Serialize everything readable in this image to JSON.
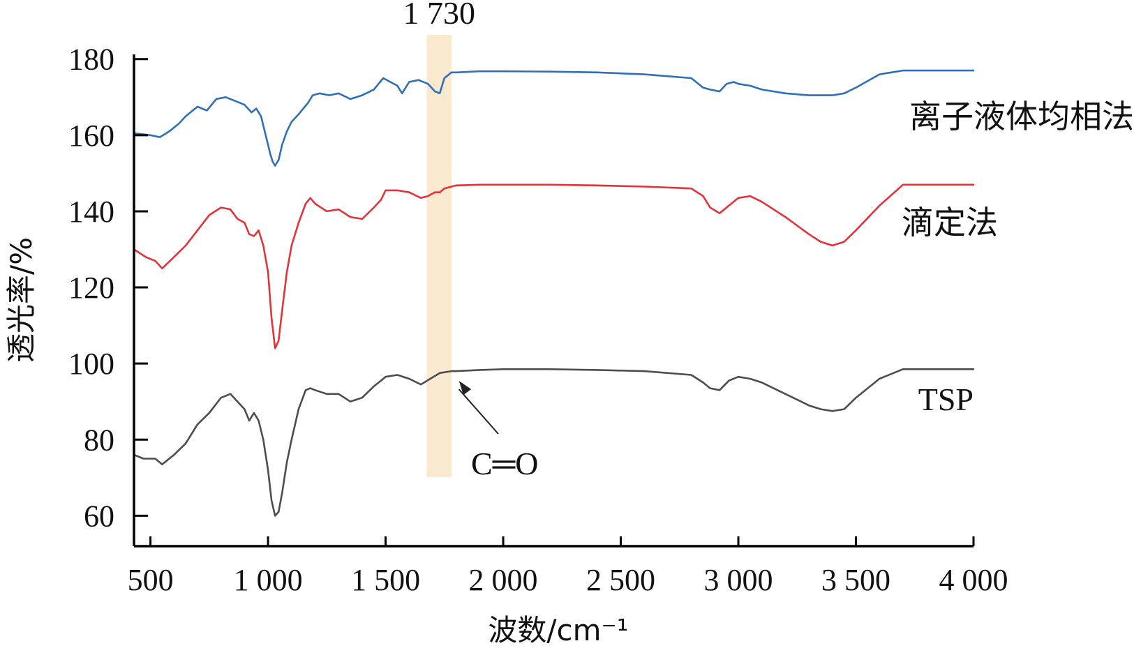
{
  "chart_data": {
    "type": "line",
    "title": "",
    "xlabel": "波数/cm⁻¹",
    "ylabel": "透光率/%",
    "xlim": [
      430,
      4000
    ],
    "ylim": [
      52,
      186
    ],
    "x_ticks": [
      500,
      1000,
      1500,
      2000,
      2500,
      3000,
      3500,
      4000
    ],
    "x_tick_labels": [
      "500",
      "1 000",
      "1 500",
      "2 000",
      "2 500",
      "3 000",
      "3 500",
      "4 000"
    ],
    "y_ticks": [
      60,
      80,
      100,
      120,
      140,
      160,
      180
    ],
    "y_tick_labels": [
      "60",
      "80",
      "100",
      "120",
      "140",
      "160",
      "180"
    ],
    "grid": false,
    "legend": "inline labels at right end of each curve",
    "highlight_band": {
      "x_from": 1675,
      "x_to": 1780,
      "label": "1 730",
      "color": "#f8e9cf"
    },
    "annotation": {
      "text": "C═O",
      "points_to_x": 1800,
      "points_to_y": 98
    },
    "series": [
      {
        "name": "离子液体均相法",
        "color": "#2f6fba",
        "x": [
          430,
          500,
          540,
          580,
          620,
          650,
          700,
          740,
          780,
          820,
          860,
          900,
          930,
          950,
          970,
          990,
          1010,
          1020,
          1030,
          1045,
          1060,
          1080,
          1100,
          1130,
          1150,
          1170,
          1190,
          1220,
          1260,
          1300,
          1350,
          1400,
          1450,
          1490,
          1520,
          1550,
          1570,
          1600,
          1640,
          1680,
          1710,
          1730,
          1750,
          1780,
          1800,
          1900,
          2000,
          2200,
          2400,
          2600,
          2800,
          2850,
          2880,
          2920,
          2950,
          2980,
          3000,
          3050,
          3100,
          3200,
          3300,
          3400,
          3450,
          3500,
          3600,
          3700,
          3800,
          4000
        ],
        "y": [
          160.5,
          160,
          159.5,
          161,
          163,
          165,
          167.5,
          166.5,
          169.5,
          170,
          169,
          168,
          166,
          167,
          165,
          160,
          155,
          153,
          152,
          153.5,
          157.5,
          161,
          163.5,
          165.5,
          167,
          168.5,
          170.5,
          171,
          170.5,
          171,
          169.5,
          170.5,
          172,
          175,
          174,
          173,
          171,
          174,
          174.5,
          173.5,
          171.5,
          171,
          175,
          176.5,
          176.5,
          176.8,
          176.8,
          176.7,
          176.5,
          176,
          175,
          172.5,
          172,
          171.5,
          173.5,
          174,
          173.5,
          173,
          172,
          171,
          170.5,
          170.5,
          171,
          172.5,
          176,
          177,
          177,
          177
        ]
      },
      {
        "name": "滴定法",
        "color": "#e0343a",
        "x": [
          430,
          480,
          520,
          550,
          600,
          650,
          700,
          750,
          800,
          840,
          870,
          900,
          920,
          940,
          960,
          980,
          1000,
          1015,
          1030,
          1045,
          1060,
          1080,
          1100,
          1130,
          1160,
          1180,
          1200,
          1250,
          1300,
          1350,
          1400,
          1450,
          1480,
          1500,
          1550,
          1600,
          1650,
          1680,
          1710,
          1730,
          1750,
          1780,
          1800,
          1900,
          2000,
          2200,
          2400,
          2600,
          2800,
          2850,
          2880,
          2920,
          2960,
          3000,
          3050,
          3100,
          3200,
          3300,
          3350,
          3400,
          3450,
          3500,
          3600,
          3700,
          4000
        ],
        "y": [
          130,
          128,
          127,
          125,
          128,
          131,
          135,
          139,
          141,
          140.5,
          138,
          137,
          134,
          133.5,
          135,
          131,
          124,
          112,
          104,
          106,
          114,
          124,
          131,
          137,
          142,
          143.5,
          142,
          140,
          140.5,
          138.5,
          138,
          141,
          143,
          145.5,
          145.5,
          145,
          143.5,
          144,
          145,
          145,
          146,
          146.5,
          146.8,
          147,
          147,
          147,
          146.8,
          146.5,
          146,
          144,
          141,
          139.5,
          141.5,
          143.5,
          144,
          142.5,
          138.5,
          134,
          132,
          131,
          132,
          135,
          141.5,
          147,
          147
        ]
      },
      {
        "name": "TSP",
        "color": "#4d4d4d",
        "x": [
          430,
          470,
          520,
          550,
          600,
          650,
          700,
          750,
          800,
          840,
          870,
          900,
          920,
          940,
          960,
          980,
          1000,
          1015,
          1030,
          1045,
          1060,
          1080,
          1100,
          1130,
          1160,
          1180,
          1200,
          1250,
          1300,
          1350,
          1400,
          1450,
          1480,
          1500,
          1550,
          1600,
          1650,
          1690,
          1730,
          1780,
          1800,
          1900,
          2000,
          2200,
          2400,
          2600,
          2800,
          2850,
          2880,
          2920,
          2960,
          3000,
          3050,
          3100,
          3200,
          3300,
          3350,
          3400,
          3450,
          3500,
          3600,
          3700,
          4000
        ],
        "y": [
          76,
          75,
          75,
          73.5,
          76,
          79,
          84,
          87,
          91,
          92,
          90,
          88,
          85,
          87,
          85,
          80,
          72,
          64,
          60,
          61,
          66,
          74,
          80,
          88,
          93,
          93.5,
          93,
          92,
          92,
          90,
          91,
          94,
          95.5,
          96.5,
          97,
          96,
          94.5,
          96,
          97.5,
          98,
          98,
          98.3,
          98.5,
          98.5,
          98.3,
          98,
          97,
          95,
          93.5,
          93,
          95.5,
          96.5,
          96,
          95,
          92,
          89,
          88,
          87.5,
          88,
          91,
          96,
          98.5,
          98.5
        ]
      }
    ]
  }
}
